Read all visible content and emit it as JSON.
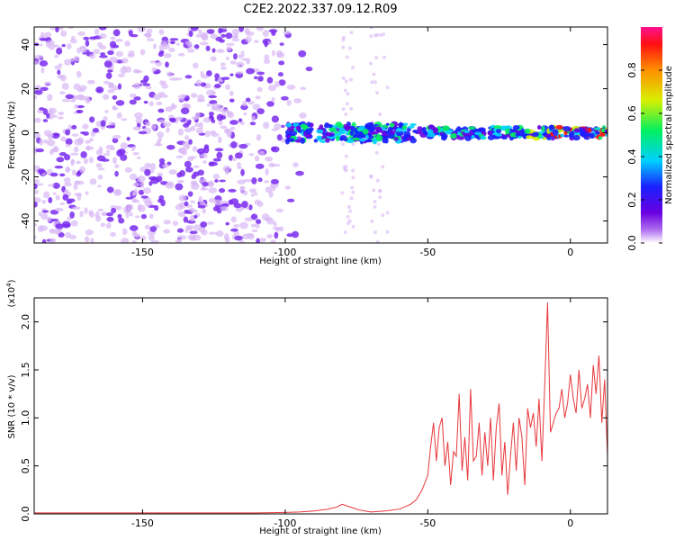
{
  "title": "C2E2.2022.337.09.12.R09",
  "colors": {
    "snr_line": "#e8383d",
    "scatter_main": "#7a2cf0",
    "scatter_light": "#d9b8f5"
  },
  "chart_data": [
    {
      "type": "heatmap",
      "name": "spectrogram",
      "xlabel": "Height of straight line (km)",
      "ylabel": "Frequency (Hz)",
      "xlim": [
        -188,
        13
      ],
      "ylim": [
        -50,
        48
      ],
      "xticks": [
        -150,
        -100,
        -50,
        0
      ],
      "xtick_labels": [
        "-150",
        "-100",
        "-50",
        "0"
      ],
      "yticks": [
        -40,
        -20,
        0,
        20,
        40
      ],
      "ytick_labels": [
        "-40",
        "-20",
        "0",
        "20",
        "40"
      ],
      "signal_band_center_hz": 0,
      "signal_x_range": [
        -100,
        13
      ],
      "noise_x_range": [
        -188,
        -90
      ],
      "colorbar": {
        "label": "Normalized spectral amplitude",
        "range": [
          0.0,
          1.0
        ],
        "ticks": [
          0.0,
          0.2,
          0.4,
          0.6,
          0.8
        ],
        "tick_labels": [
          "0.0",
          "0.2",
          "0.4",
          "0.6",
          "0.8"
        ],
        "colormap": "rainbow (white → purple → blue → cyan → green → yellow → red → magenta)"
      }
    },
    {
      "type": "line",
      "name": "snr",
      "xlabel": "Height of straight line (km)",
      "ylabel": "SNR (10 * v/v)",
      "y_scale_label": "(x10",
      "y_scale_exp": "4",
      "y_scale_close": ")",
      "xlim": [
        -188,
        13
      ],
      "ylim": [
        0,
        2.25
      ],
      "xticks": [
        -150,
        -100,
        -50,
        0
      ],
      "xtick_labels": [
        "-150",
        "-100",
        "-50",
        "0"
      ],
      "yticks": [
        0.0,
        0.5,
        1.0,
        1.5,
        2.0
      ],
      "ytick_labels": [
        "0.0",
        "0.5",
        "1.0",
        "1.5",
        "2.0"
      ],
      "series": [
        {
          "x": [
            -188,
            -175,
            -160,
            -150,
            -140,
            -130,
            -120,
            -110,
            -100,
            -95,
            -90,
            -85,
            -82,
            -80,
            -78,
            -76,
            -74,
            -72,
            -70,
            -65,
            -60,
            -56,
            -54,
            -52,
            -50,
            -49,
            -48,
            -47,
            -46,
            -45,
            -44,
            -43,
            -42,
            -41,
            -40,
            -39,
            -38,
            -37,
            -36,
            -35,
            -34,
            -33,
            -32,
            -31,
            -30,
            -29,
            -28,
            -27,
            -26,
            -25,
            -24,
            -23,
            -22,
            -21,
            -20,
            -19,
            -18,
            -17,
            -16,
            -15,
            -14,
            -13,
            -12,
            -11,
            -10,
            -9,
            -8,
            -7,
            -6,
            -5,
            -4,
            -3,
            -2,
            -1,
            0,
            1,
            2,
            3,
            4,
            5,
            6,
            7,
            8,
            9,
            10,
            11,
            12,
            13
          ],
          "values": [
            0.01,
            0.01,
            0.01,
            0.01,
            0.01,
            0.01,
            0.01,
            0.01,
            0.015,
            0.02,
            0.03,
            0.05,
            0.07,
            0.1,
            0.08,
            0.06,
            0.04,
            0.03,
            0.02,
            0.03,
            0.05,
            0.1,
            0.15,
            0.25,
            0.4,
            0.7,
            0.95,
            0.55,
            0.9,
            1.0,
            0.5,
            0.75,
            0.3,
            0.65,
            0.6,
            1.25,
            0.45,
            0.8,
            0.35,
            1.3,
            0.55,
            0.6,
            0.95,
            0.4,
            0.85,
            0.5,
            1.0,
            0.35,
            0.9,
            1.15,
            0.4,
            0.75,
            0.2,
            0.6,
            0.95,
            0.45,
            1.0,
            0.8,
            0.3,
            1.1,
            0.9,
            1.05,
            0.7,
            1.2,
            0.55,
            1.35,
            2.2,
            0.85,
            0.95,
            1.05,
            1.1,
            1.3,
            1.0,
            1.15,
            1.45,
            1.2,
            1.05,
            1.5,
            1.1,
            1.2,
            1.35,
            1.0,
            1.55,
            1.25,
            1.65,
            0.95,
            1.4,
            0.6
          ]
        }
      ]
    }
  ]
}
